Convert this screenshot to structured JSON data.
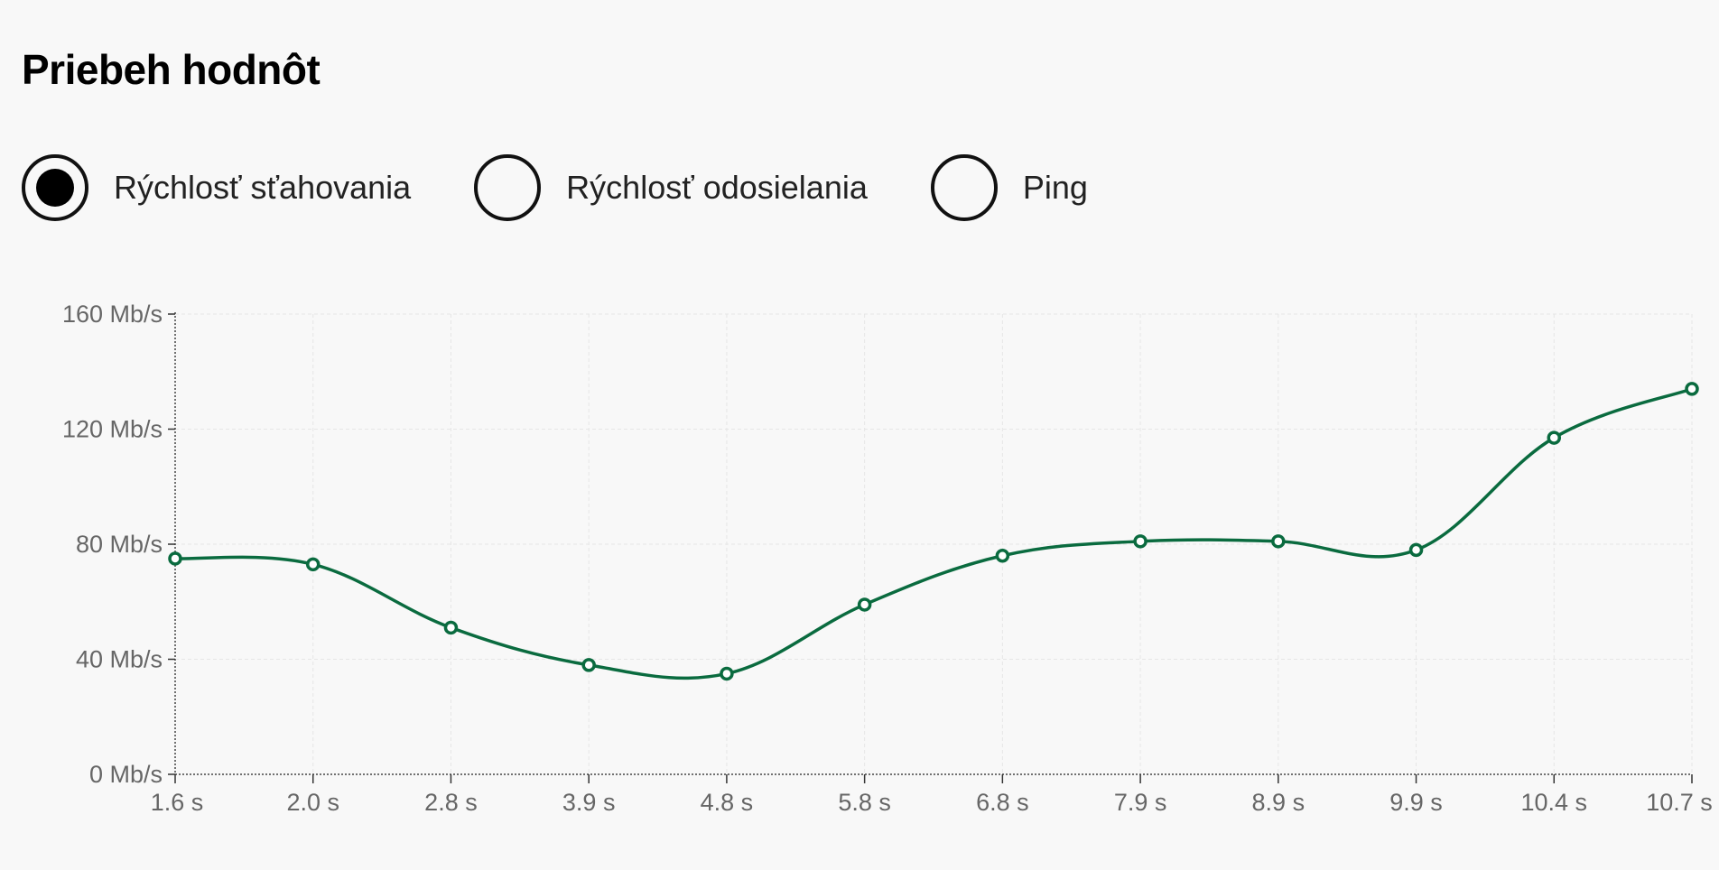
{
  "title": "Priebeh hodnôt",
  "radio_options": [
    {
      "label": "Rýchlosť sťahovania",
      "selected": true
    },
    {
      "label": "Rýchlosť odosielania",
      "selected": false
    },
    {
      "label": "Ping",
      "selected": false
    }
  ],
  "chart_data": {
    "type": "line",
    "x": [
      "1.6 s",
      "2.0 s",
      "2.8 s",
      "3.9 s",
      "4.8 s",
      "5.8 s",
      "6.8 s",
      "7.9 s",
      "8.9 s",
      "9.9 s",
      "10.4 s",
      "10.7 s"
    ],
    "values": [
      75,
      73,
      51,
      38,
      35,
      59,
      76,
      81,
      81,
      78,
      117,
      134
    ],
    "yticks": [
      "0 Mb/s",
      "40 Mb/s",
      "80 Mb/s",
      "120 Mb/s",
      "160 Mb/s"
    ],
    "ylim": [
      0,
      160
    ],
    "grid": true,
    "line_color": "#0a6b3f"
  }
}
